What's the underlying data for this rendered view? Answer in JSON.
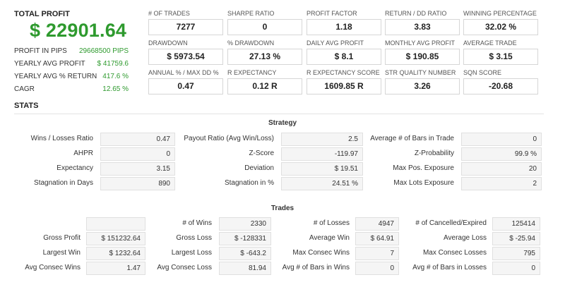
{
  "summary": {
    "total_profit_label": "TOTAL PROFIT",
    "total_profit_value": "$ 22901.64",
    "rows": [
      {
        "label": "PROFIT IN PIPS",
        "value": "29668500 PIPS"
      },
      {
        "label": "YEARLY AVG PROFIT",
        "value": "$ 41759.6"
      },
      {
        "label": "YEARLY AVG % RETURN",
        "value": "417.6 %"
      },
      {
        "label": "CAGR",
        "value": "12.65 %"
      }
    ]
  },
  "metrics": [
    {
      "label": "# OF TRADES",
      "value": "7277"
    },
    {
      "label": "SHARPE RATIO",
      "value": "0"
    },
    {
      "label": "PROFIT FACTOR",
      "value": "1.18"
    },
    {
      "label": "RETURN / DD RATIO",
      "value": "3.83"
    },
    {
      "label": "WINNING PERCENTAGE",
      "value": "32.02 %"
    },
    {
      "label": "DRAWDOWN",
      "value": "$ 5973.54"
    },
    {
      "label": "% DRAWDOWN",
      "value": "27.13 %"
    },
    {
      "label": "DAILY AVG PROFIT",
      "value": "$ 8.1"
    },
    {
      "label": "MONTHLY AVG PROFIT",
      "value": "$ 190.85"
    },
    {
      "label": "AVERAGE TRADE",
      "value": "$ 3.15"
    },
    {
      "label": "ANNUAL % / MAX DD %",
      "value": "0.47"
    },
    {
      "label": "R EXPECTANCY",
      "value": "0.12 R"
    },
    {
      "label": "R EXPECTANCY SCORE",
      "value": "1609.85 R"
    },
    {
      "label": "STR QUALITY NUMBER",
      "value": "3.26"
    },
    {
      "label": "SQN SCORE",
      "value": "-20.68"
    }
  ],
  "stats_title": "STATS",
  "strategy": {
    "title": "Strategy",
    "rows": [
      [
        {
          "label": "Wins / Losses Ratio",
          "value": "0.47"
        },
        {
          "label": "Payout Ratio (Avg Win/Loss)",
          "value": "2.5"
        },
        {
          "label": "Average # of Bars in Trade",
          "value": "0"
        }
      ],
      [
        {
          "label": "AHPR",
          "value": "0"
        },
        {
          "label": "Z-Score",
          "value": "-119.97"
        },
        {
          "label": "Z-Probability",
          "value": "99.9 %"
        }
      ],
      [
        {
          "label": "Expectancy",
          "value": "3.15"
        },
        {
          "label": "Deviation",
          "value": "$ 19.51"
        },
        {
          "label": "Max Pos. Exposure",
          "value": "20"
        }
      ],
      [
        {
          "label": "Stagnation in Days",
          "value": "890"
        },
        {
          "label": "Stagnation in %",
          "value": "24.51 %"
        },
        {
          "label": "Max Lots Exposure",
          "value": "2"
        }
      ]
    ]
  },
  "trades": {
    "title": "Trades",
    "rows": [
      [
        {
          "label": "",
          "value": ""
        },
        {
          "label": "# of Wins",
          "value": "2330"
        },
        {
          "label": "# of Losses",
          "value": "4947"
        },
        {
          "label": "# of Cancelled/Expired",
          "value": "125414"
        }
      ],
      [
        {
          "label": "Gross Profit",
          "value": "$ 151232.64"
        },
        {
          "label": "Gross Loss",
          "value": "$ -128331"
        },
        {
          "label": "Average Win",
          "value": "$ 64.91"
        },
        {
          "label": "Average Loss",
          "value": "$ -25.94"
        }
      ],
      [
        {
          "label": "Largest Win",
          "value": "$ 1232.64"
        },
        {
          "label": "Largest Loss",
          "value": "$ -643.2"
        },
        {
          "label": "Max Consec Wins",
          "value": "7"
        },
        {
          "label": "Max Consec Losses",
          "value": "795"
        }
      ],
      [
        {
          "label": "Avg Consec Wins",
          "value": "1.47"
        },
        {
          "label": "Avg Consec Loss",
          "value": "81.94"
        },
        {
          "label": "Avg # of Bars in Wins",
          "value": "0"
        },
        {
          "label": "Avg # of Bars in Losses",
          "value": "0"
        }
      ]
    ]
  }
}
